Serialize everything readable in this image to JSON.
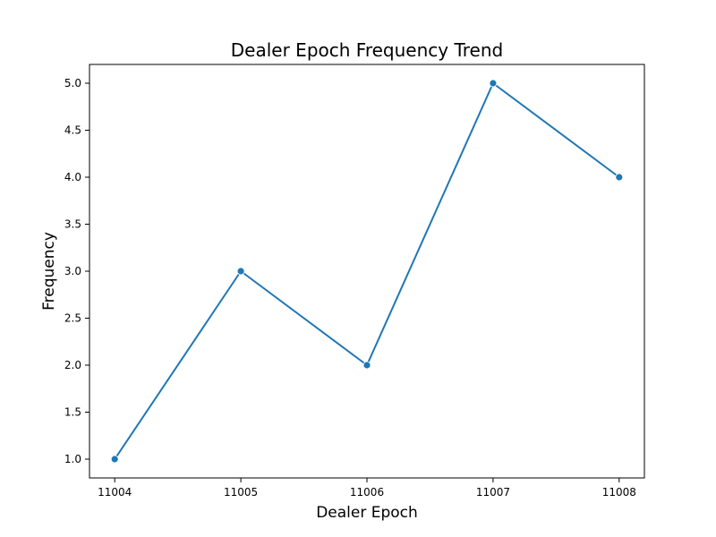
{
  "chart_data": {
    "type": "line",
    "title": "Dealer Epoch Frequency Trend",
    "xlabel": "Dealer Epoch",
    "ylabel": "Frequency",
    "x": [
      11004,
      11005,
      11006,
      11007,
      11008
    ],
    "x_tick_labels": [
      "11004",
      "11005",
      "11006",
      "11007",
      "11008"
    ],
    "y_ticks": [
      1.0,
      1.5,
      2.0,
      2.5,
      3.0,
      3.5,
      4.0,
      4.5,
      5.0
    ],
    "y_tick_labels": [
      "1.0",
      "1.5",
      "2.0",
      "2.5",
      "3.0",
      "3.5",
      "4.0",
      "4.5",
      "5.0"
    ],
    "xlim": [
      11003.8,
      11008.2
    ],
    "ylim": [
      0.8,
      5.2
    ],
    "grid": false,
    "series": [
      {
        "values": [
          1,
          3,
          2,
          5,
          4
        ],
        "color": "#1f77b4",
        "marker": "circle"
      }
    ]
  }
}
